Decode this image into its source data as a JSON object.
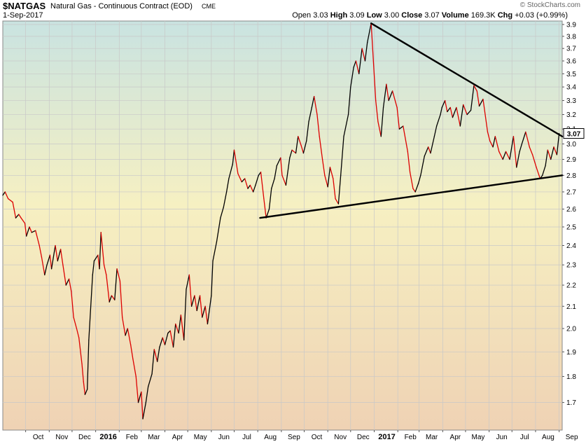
{
  "header": {
    "symbol": "$NATGAS",
    "description": "Natural Gas - Continuous Contract (EOD)",
    "exchange": "CME",
    "date": "1-Sep-2017",
    "watermark": "© StockCharts.com",
    "ohlc": {
      "open_label": "Open",
      "open": "3.03",
      "high_label": "High",
      "high": "3.09",
      "low_label": "Low",
      "low": "3.00",
      "close_label": "Close",
      "close": "3.07",
      "volume_label": "Volume",
      "volume": "169.3K",
      "chg_label": "Chg",
      "chg": "+0.03 (+0.99%)"
    }
  },
  "chart_data": {
    "type": "line",
    "title": "",
    "xlabel": "",
    "ylabel": "",
    "ylim": [
      1.6,
      3.93
    ],
    "y_scale": "log",
    "y_axis_side": "right",
    "y_ticks": [
      1.7,
      1.8,
      1.9,
      2.0,
      2.1,
      2.2,
      2.3,
      2.4,
      2.5,
      2.6,
      2.7,
      2.8,
      2.9,
      3.0,
      3.1,
      3.2,
      3.3,
      3.4,
      3.5,
      3.6,
      3.7,
      3.8,
      3.9
    ],
    "x_range": [
      "2015-09-01",
      "2017-09-05"
    ],
    "x_ticks": [
      {
        "label": "Oct",
        "date": "2015-10-01",
        "bold": false
      },
      {
        "label": "Nov",
        "date": "2015-11-01",
        "bold": false
      },
      {
        "label": "Dec",
        "date": "2015-12-01",
        "bold": false
      },
      {
        "label": "2016",
        "date": "2016-01-01",
        "bold": true
      },
      {
        "label": "Feb",
        "date": "2016-02-01",
        "bold": false
      },
      {
        "label": "Mar",
        "date": "2016-03-01",
        "bold": false
      },
      {
        "label": "Apr",
        "date": "2016-04-01",
        "bold": false
      },
      {
        "label": "May",
        "date": "2016-05-01",
        "bold": false
      },
      {
        "label": "Jun",
        "date": "2016-06-01",
        "bold": false
      },
      {
        "label": "Jul",
        "date": "2016-07-01",
        "bold": false
      },
      {
        "label": "Aug",
        "date": "2016-08-01",
        "bold": false
      },
      {
        "label": "Sep",
        "date": "2016-09-01",
        "bold": false
      },
      {
        "label": "Oct",
        "date": "2016-10-01",
        "bold": false
      },
      {
        "label": "Nov",
        "date": "2016-11-01",
        "bold": false
      },
      {
        "label": "Dec",
        "date": "2016-12-01",
        "bold": false
      },
      {
        "label": "2017",
        "date": "2017-01-01",
        "bold": true
      },
      {
        "label": "Feb",
        "date": "2017-02-01",
        "bold": false
      },
      {
        "label": "Mar",
        "date": "2017-03-01",
        "bold": false
      },
      {
        "label": "Apr",
        "date": "2017-04-01",
        "bold": false
      },
      {
        "label": "May",
        "date": "2017-05-01",
        "bold": false
      },
      {
        "label": "Jun",
        "date": "2017-06-01",
        "bold": false
      },
      {
        "label": "Jul",
        "date": "2017-07-01",
        "bold": false
      },
      {
        "label": "Aug",
        "date": "2017-08-01",
        "bold": false
      },
      {
        "label": "Sep",
        "date": "2017-09-01",
        "bold": false
      }
    ],
    "grid": true,
    "last_value_label": "3.07",
    "colors": {
      "up": "#000000",
      "down": "#dd0000",
      "grid": "#c8c8c8",
      "trendline": "#000000"
    },
    "series": [
      {
        "values": [
          [
            "2015-09-01",
            2.68
          ],
          [
            "2015-09-04",
            2.7
          ],
          [
            "2015-09-08",
            2.66
          ],
          [
            "2015-09-14",
            2.64
          ],
          [
            "2015-09-18",
            2.55
          ],
          [
            "2015-09-22",
            2.57
          ],
          [
            "2015-09-25",
            2.55
          ],
          [
            "2015-09-30",
            2.52
          ],
          [
            "2015-10-02",
            2.45
          ],
          [
            "2015-10-06",
            2.5
          ],
          [
            "2015-10-09",
            2.47
          ],
          [
            "2015-10-14",
            2.48
          ],
          [
            "2015-10-19",
            2.4
          ],
          [
            "2015-10-22",
            2.34
          ],
          [
            "2015-10-26",
            2.25
          ],
          [
            "2015-10-29",
            2.3
          ],
          [
            "2015-11-02",
            2.35
          ],
          [
            "2015-11-04",
            2.28
          ],
          [
            "2015-11-09",
            2.4
          ],
          [
            "2015-11-12",
            2.32
          ],
          [
            "2015-11-16",
            2.38
          ],
          [
            "2015-11-19",
            2.3
          ],
          [
            "2015-11-23",
            2.2
          ],
          [
            "2015-11-27",
            2.23
          ],
          [
            "2015-11-30",
            2.17
          ],
          [
            "2015-12-03",
            2.05
          ],
          [
            "2015-12-07",
            2.0
          ],
          [
            "2015-12-10",
            1.96
          ],
          [
            "2015-12-14",
            1.85
          ],
          [
            "2015-12-16",
            1.78
          ],
          [
            "2015-12-18",
            1.73
          ],
          [
            "2015-12-21",
            1.75
          ],
          [
            "2015-12-23",
            1.95
          ],
          [
            "2015-12-28",
            2.25
          ],
          [
            "2015-12-30",
            2.32
          ],
          [
            "2016-01-04",
            2.35
          ],
          [
            "2016-01-06",
            2.28
          ],
          [
            "2016-01-08",
            2.47
          ],
          [
            "2016-01-12",
            2.3
          ],
          [
            "2016-01-15",
            2.25
          ],
          [
            "2016-01-19",
            2.12
          ],
          [
            "2016-01-22",
            2.15
          ],
          [
            "2016-01-26",
            2.13
          ],
          [
            "2016-01-29",
            2.28
          ],
          [
            "2016-02-02",
            2.22
          ],
          [
            "2016-02-05",
            2.05
          ],
          [
            "2016-02-09",
            1.97
          ],
          [
            "2016-02-12",
            2.0
          ],
          [
            "2016-02-16",
            1.93
          ],
          [
            "2016-02-19",
            1.87
          ],
          [
            "2016-02-23",
            1.8
          ],
          [
            "2016-02-26",
            1.7
          ],
          [
            "2016-03-01",
            1.74
          ],
          [
            "2016-03-03",
            1.64
          ],
          [
            "2016-03-07",
            1.7
          ],
          [
            "2016-03-10",
            1.76
          ],
          [
            "2016-03-15",
            1.81
          ],
          [
            "2016-03-18",
            1.91
          ],
          [
            "2016-03-22",
            1.86
          ],
          [
            "2016-03-25",
            1.92
          ],
          [
            "2016-03-29",
            1.96
          ],
          [
            "2016-04-01",
            1.93
          ],
          [
            "2016-04-05",
            1.98
          ],
          [
            "2016-04-08",
            1.99
          ],
          [
            "2016-04-12",
            1.92
          ],
          [
            "2016-04-15",
            2.02
          ],
          [
            "2016-04-19",
            1.98
          ],
          [
            "2016-04-22",
            2.06
          ],
          [
            "2016-04-26",
            1.95
          ],
          [
            "2016-04-29",
            2.18
          ],
          [
            "2016-05-03",
            2.25
          ],
          [
            "2016-05-06",
            2.1
          ],
          [
            "2016-05-10",
            2.15
          ],
          [
            "2016-05-13",
            2.08
          ],
          [
            "2016-05-17",
            2.15
          ],
          [
            "2016-05-20",
            2.05
          ],
          [
            "2016-05-24",
            2.1
          ],
          [
            "2016-05-27",
            2.02
          ],
          [
            "2016-06-01",
            2.15
          ],
          [
            "2016-06-03",
            2.32
          ],
          [
            "2016-06-08",
            2.42
          ],
          [
            "2016-06-13",
            2.55
          ],
          [
            "2016-06-17",
            2.61
          ],
          [
            "2016-06-21",
            2.7
          ],
          [
            "2016-06-24",
            2.78
          ],
          [
            "2016-06-29",
            2.87
          ],
          [
            "2016-07-01",
            2.96
          ],
          [
            "2016-07-06",
            2.81
          ],
          [
            "2016-07-11",
            2.76
          ],
          [
            "2016-07-15",
            2.78
          ],
          [
            "2016-07-19",
            2.72
          ],
          [
            "2016-07-22",
            2.74
          ],
          [
            "2016-07-26",
            2.7
          ],
          [
            "2016-07-29",
            2.74
          ],
          [
            "2016-08-02",
            2.8
          ],
          [
            "2016-08-05",
            2.82
          ],
          [
            "2016-08-09",
            2.66
          ],
          [
            "2016-08-12",
            2.55
          ],
          [
            "2016-08-16",
            2.6
          ],
          [
            "2016-08-19",
            2.72
          ],
          [
            "2016-08-23",
            2.78
          ],
          [
            "2016-08-26",
            2.86
          ],
          [
            "2016-08-31",
            2.91
          ],
          [
            "2016-09-02",
            2.8
          ],
          [
            "2016-09-07",
            2.74
          ],
          [
            "2016-09-12",
            2.91
          ],
          [
            "2016-09-15",
            2.96
          ],
          [
            "2016-09-20",
            2.94
          ],
          [
            "2016-09-23",
            3.05
          ],
          [
            "2016-09-27",
            2.99
          ],
          [
            "2016-09-30",
            2.94
          ],
          [
            "2016-10-04",
            3.02
          ],
          [
            "2016-10-07",
            3.15
          ],
          [
            "2016-10-11",
            3.25
          ],
          [
            "2016-10-14",
            3.33
          ],
          [
            "2016-10-18",
            3.2
          ],
          [
            "2016-10-21",
            3.05
          ],
          [
            "2016-10-25",
            2.9
          ],
          [
            "2016-10-28",
            2.8
          ],
          [
            "2016-11-01",
            2.73
          ],
          [
            "2016-11-04",
            2.85
          ],
          [
            "2016-11-08",
            2.78
          ],
          [
            "2016-11-11",
            2.66
          ],
          [
            "2016-11-15",
            2.63
          ],
          [
            "2016-11-18",
            2.8
          ],
          [
            "2016-11-22",
            3.05
          ],
          [
            "2016-11-28",
            3.2
          ],
          [
            "2016-12-01",
            3.4
          ],
          [
            "2016-12-05",
            3.55
          ],
          [
            "2016-12-08",
            3.6
          ],
          [
            "2016-12-12",
            3.5
          ],
          [
            "2016-12-16",
            3.7
          ],
          [
            "2016-12-20",
            3.6
          ],
          [
            "2016-12-23",
            3.75
          ],
          [
            "2016-12-28",
            3.91
          ],
          [
            "2017-01-03",
            3.3
          ],
          [
            "2017-01-06",
            3.15
          ],
          [
            "2017-01-10",
            3.05
          ],
          [
            "2017-01-13",
            3.25
          ],
          [
            "2017-01-17",
            3.42
          ],
          [
            "2017-01-20",
            3.3
          ],
          [
            "2017-01-25",
            3.37
          ],
          [
            "2017-01-31",
            3.25
          ],
          [
            "2017-02-03",
            3.1
          ],
          [
            "2017-02-08",
            3.12
          ],
          [
            "2017-02-14",
            2.95
          ],
          [
            "2017-02-17",
            2.82
          ],
          [
            "2017-02-21",
            2.72
          ],
          [
            "2017-02-24",
            2.7
          ],
          [
            "2017-02-28",
            2.75
          ],
          [
            "2017-03-03",
            2.8
          ],
          [
            "2017-03-08",
            2.92
          ],
          [
            "2017-03-13",
            2.98
          ],
          [
            "2017-03-16",
            2.94
          ],
          [
            "2017-03-21",
            3.05
          ],
          [
            "2017-03-24",
            3.12
          ],
          [
            "2017-03-29",
            3.2
          ],
          [
            "2017-03-31",
            3.25
          ],
          [
            "2017-04-04",
            3.3
          ],
          [
            "2017-04-07",
            3.22
          ],
          [
            "2017-04-11",
            3.25
          ],
          [
            "2017-04-14",
            3.18
          ],
          [
            "2017-04-19",
            3.25
          ],
          [
            "2017-04-24",
            3.12
          ],
          [
            "2017-04-28",
            3.27
          ],
          [
            "2017-05-03",
            3.2
          ],
          [
            "2017-05-08",
            3.23
          ],
          [
            "2017-05-12",
            3.41
          ],
          [
            "2017-05-16",
            3.37
          ],
          [
            "2017-05-19",
            3.26
          ],
          [
            "2017-05-24",
            3.31
          ],
          [
            "2017-05-30",
            3.08
          ],
          [
            "2017-06-02",
            3.02
          ],
          [
            "2017-06-06",
            2.98
          ],
          [
            "2017-06-09",
            3.05
          ],
          [
            "2017-06-14",
            2.95
          ],
          [
            "2017-06-19",
            2.9
          ],
          [
            "2017-06-23",
            2.95
          ],
          [
            "2017-06-28",
            2.9
          ],
          [
            "2017-07-03",
            3.05
          ],
          [
            "2017-07-07",
            2.85
          ],
          [
            "2017-07-11",
            2.95
          ],
          [
            "2017-07-14",
            3.0
          ],
          [
            "2017-07-19",
            3.08
          ],
          [
            "2017-07-24",
            2.98
          ],
          [
            "2017-07-28",
            2.93
          ],
          [
            "2017-08-02",
            2.85
          ],
          [
            "2017-08-07",
            2.78
          ],
          [
            "2017-08-10",
            2.8
          ],
          [
            "2017-08-14",
            2.86
          ],
          [
            "2017-08-17",
            2.96
          ],
          [
            "2017-08-21",
            2.9
          ],
          [
            "2017-08-25",
            2.98
          ],
          [
            "2017-08-29",
            2.93
          ],
          [
            "2017-09-01",
            3.07
          ]
        ]
      }
    ],
    "annotations": [
      {
        "type": "trendline",
        "from": [
          "2016-08-04",
          2.55
        ],
        "to": [
          "2017-09-05",
          2.8
        ]
      },
      {
        "type": "trendline",
        "from": [
          "2016-12-28",
          3.91
        ],
        "to": [
          "2017-09-05",
          3.05
        ]
      }
    ]
  }
}
